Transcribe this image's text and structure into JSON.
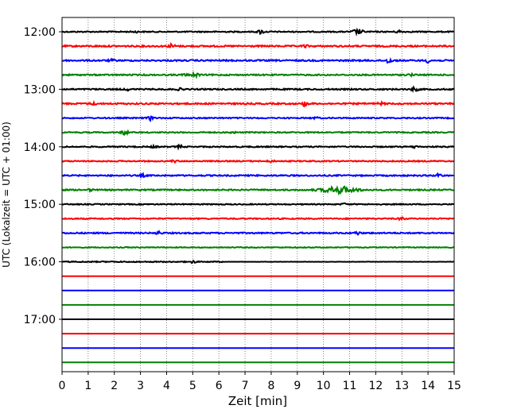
{
  "chart_data": {
    "type": "line",
    "title": "",
    "xlabel": "Zeit  [min]",
    "ylabel": "UTC (Lokalzeit = UTC + 01:00)",
    "xlim": [
      0,
      15
    ],
    "x_ticks": [
      0,
      1,
      2,
      3,
      4,
      5,
      6,
      7,
      8,
      9,
      10,
      11,
      12,
      13,
      14,
      15
    ],
    "x_tick_labels": [
      "0",
      "1",
      "2",
      "3",
      "4",
      "5",
      "6",
      "7",
      "8",
      "9",
      "10",
      "11",
      "12",
      "13",
      "14",
      "15"
    ],
    "y_tick_labels": [
      "12:00",
      "13:00",
      "14:00",
      "15:00",
      "16:00",
      "17:00"
    ],
    "grid": "vertical dotted",
    "color_cycle": [
      "#000000",
      "#ff0000",
      "#0000ff",
      "#008000"
    ],
    "traces": [
      {
        "start": "12:00",
        "noise": 0.7,
        "events": [
          [
            2.8,
            0.8
          ],
          [
            7.6,
            2.6
          ],
          [
            11.2,
            2.2
          ],
          [
            11.4,
            2.8
          ],
          [
            12.9,
            1.6
          ]
        ]
      },
      {
        "start": "12:15",
        "noise": 0.9,
        "events": [
          [
            4.2,
            2.6
          ],
          [
            9.3,
            1.2
          ]
        ]
      },
      {
        "start": "12:30",
        "noise": 0.9,
        "events": [
          [
            1.9,
            1.0
          ],
          [
            12.5,
            3.0
          ],
          [
            14.0,
            2.2
          ]
        ]
      },
      {
        "start": "12:45",
        "noise": 0.8,
        "events": [
          [
            5.1,
            3.0
          ],
          [
            4.7,
            1.0
          ],
          [
            13.3,
            1.2
          ]
        ]
      },
      {
        "start": "13:00",
        "noise": 0.8,
        "events": [
          [
            2.5,
            1.0
          ],
          [
            4.5,
            1.0
          ],
          [
            13.5,
            2.6
          ]
        ]
      },
      {
        "start": "13:15",
        "noise": 0.9,
        "events": [
          [
            1.2,
            1.0
          ],
          [
            9.3,
            2.6
          ],
          [
            12.2,
            1.2
          ]
        ]
      },
      {
        "start": "13:30",
        "noise": 0.7,
        "events": [
          [
            3.4,
            2.6
          ],
          [
            9.7,
            1.0
          ]
        ]
      },
      {
        "start": "13:45",
        "noise": 0.7,
        "events": [
          [
            2.4,
            3.0
          ],
          [
            6.5,
            1.0
          ]
        ]
      },
      {
        "start": "14:00",
        "noise": 0.7,
        "events": [
          [
            4.5,
            1.6
          ],
          [
            3.5,
            1.0
          ],
          [
            13.5,
            1.2
          ]
        ]
      },
      {
        "start": "14:15",
        "noise": 0.7,
        "events": [
          [
            4.3,
            1.2
          ],
          [
            8.0,
            1.0
          ]
        ]
      },
      {
        "start": "14:30",
        "noise": 0.8,
        "events": [
          [
            3.1,
            1.2
          ],
          [
            14.4,
            2.2
          ]
        ]
      },
      {
        "start": "14:45",
        "noise": 0.8,
        "events": [
          [
            10.6,
            3.8
          ],
          [
            1.1,
            1.0
          ]
        ]
      },
      {
        "start": "15:00",
        "noise": 0.6,
        "events": [
          [
            10.8,
            1.0
          ]
        ]
      },
      {
        "start": "15:15",
        "noise": 0.7,
        "events": [
          [
            13.0,
            1.6
          ]
        ]
      },
      {
        "start": "15:30",
        "noise": 0.8,
        "events": [
          [
            3.7,
            1.6
          ],
          [
            11.3,
            1.6
          ]
        ]
      },
      {
        "start": "15:45",
        "noise": 0.5,
        "events": []
      },
      {
        "start": "16:00",
        "noise": 0.6,
        "events": [
          [
            5.0,
            1.4
          ]
        ],
        "end": 6.2
      },
      {
        "start": "16:15",
        "noise": 0.0,
        "events": []
      },
      {
        "start": "16:30",
        "noise": 0.0,
        "events": []
      },
      {
        "start": "16:45",
        "noise": 0.0,
        "events": []
      },
      {
        "start": "17:00",
        "noise": 0.0,
        "events": []
      },
      {
        "start": "17:15",
        "noise": 0.0,
        "events": []
      },
      {
        "start": "17:30",
        "noise": 0.0,
        "events": []
      },
      {
        "start": "17:45",
        "noise": 0.0,
        "events": []
      }
    ]
  }
}
